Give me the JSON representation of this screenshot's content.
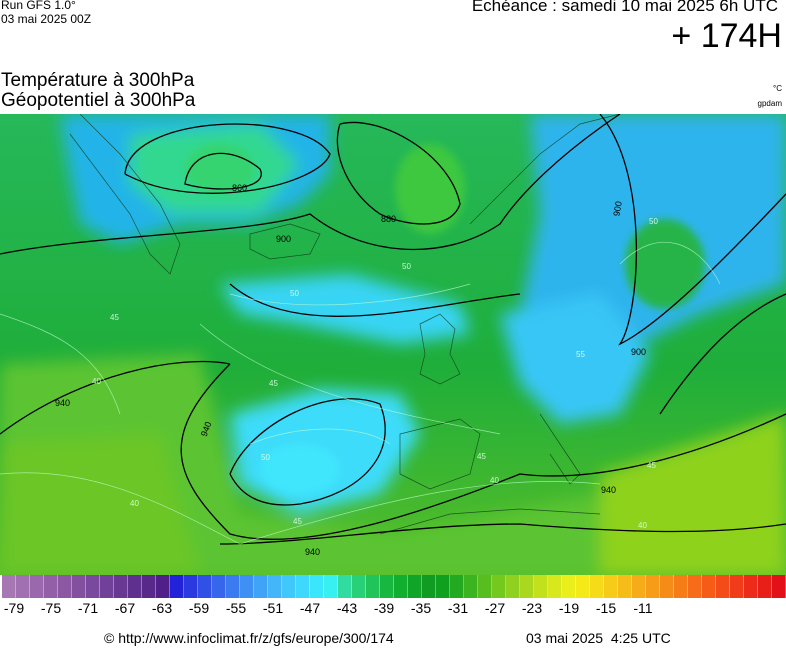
{
  "header": {
    "run_label": "Run GFS 1.0°",
    "run_date": "03 mai 2025 00Z",
    "echeance": "Echéance : samedi 10 mai 2025 6h UTC",
    "lead_time": "+ 174H"
  },
  "title": {
    "line1": "Température à 300hPa",
    "line2": "Géopotentiel à 300hPa"
  },
  "units": {
    "temperature": "°C",
    "geopotential": "gpdam"
  },
  "map": {
    "isohypse_labels": [
      {
        "id": "z860",
        "text": "860"
      },
      {
        "id": "z880",
        "text": "880"
      },
      {
        "id": "z900a",
        "text": "900"
      },
      {
        "id": "z900b",
        "text": "900"
      },
      {
        "id": "z900c",
        "text": "900"
      },
      {
        "id": "z940a",
        "text": "940"
      },
      {
        "id": "z940b",
        "text": "940"
      },
      {
        "id": "z940c",
        "text": "940"
      },
      {
        "id": "z940d",
        "text": "940"
      }
    ],
    "isotherm_labels": [
      {
        "id": "t45a",
        "text": "45"
      },
      {
        "id": "t45b",
        "text": "45"
      },
      {
        "id": "t45c",
        "text": "45"
      },
      {
        "id": "t45d",
        "text": "45"
      },
      {
        "id": "t45e",
        "text": "45"
      },
      {
        "id": "t40a",
        "text": "40"
      },
      {
        "id": "t40b",
        "text": "40"
      },
      {
        "id": "t40c",
        "text": "40"
      },
      {
        "id": "t40d",
        "text": "40"
      },
      {
        "id": "t50a",
        "text": "50"
      },
      {
        "id": "t50b",
        "text": "50"
      },
      {
        "id": "t50c",
        "text": "50"
      },
      {
        "id": "t50d",
        "text": "50"
      },
      {
        "id": "t55a",
        "text": "55"
      }
    ]
  },
  "colorbar": {
    "colors": [
      "#a777b4",
      "#a070b0",
      "#9a68ac",
      "#9360a8",
      "#8c58a4",
      "#8350a0",
      "#7a489c",
      "#714098",
      "#683893",
      "#60308f",
      "#58288b",
      "#502088",
      "#2222d8",
      "#2a3ae0",
      "#3050e6",
      "#3566ec",
      "#3a7cf0",
      "#3e90f4",
      "#40a4f6",
      "#42b6f8",
      "#40c8fa",
      "#3ed8fc",
      "#3ae6fc",
      "#38f0f2",
      "#30dca0",
      "#28d078",
      "#20c458",
      "#18b840",
      "#12ae30",
      "#10a428",
      "#109c22",
      "#10a020",
      "#24aa20",
      "#3cb420",
      "#58be20",
      "#74c81e",
      "#90d01e",
      "#aad81e",
      "#c2e01c",
      "#d8e81c",
      "#eaee1a",
      "#f4ea18",
      "#f6dc18",
      "#f6cc18",
      "#f6bc18",
      "#f6ac18",
      "#f69c18",
      "#f68c18",
      "#f67c18",
      "#f66c18",
      "#f65c18",
      "#f44c18",
      "#f03c18",
      "#ec2c18",
      "#e81e18",
      "#e41018"
    ],
    "tick_labels": [
      "-79",
      "-75",
      "-71",
      "-67",
      "-63",
      "-59",
      "-55",
      "-51",
      "-47",
      "-43",
      "-39",
      "-35",
      "-31",
      "-27",
      "-23",
      "-19",
      "-15",
      "-11"
    ]
  },
  "footer": {
    "copyright": "© http://www.infoclimat.fr/z/gfs/europe/300/174",
    "generated": "03 mai 2025  4:25 UTC"
  }
}
